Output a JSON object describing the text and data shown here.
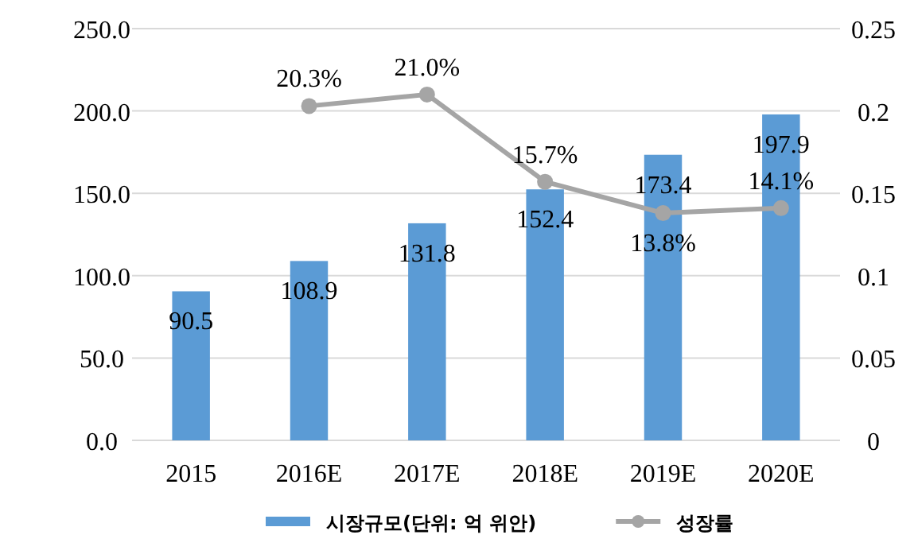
{
  "chart_data": {
    "type": "bar",
    "categories": [
      "2015",
      "2016E",
      "2017E",
      "2018E",
      "2019E",
      "2020E"
    ],
    "series": [
      {
        "name": "시장규모(단위: 억 위안)",
        "color": "#5b9bd5",
        "values": [
          90.5,
          108.9,
          131.8,
          152.4,
          173.4,
          197.9
        ]
      },
      {
        "name": "성장률",
        "type": "line",
        "axis": "y2",
        "color": "#a5a5a5",
        "values": [
          null,
          0.203,
          0.21,
          0.157,
          0.138,
          0.141
        ],
        "value_labels": [
          null,
          "20.3%",
          "21.0%",
          "15.7%",
          "13.8%",
          "14.1%"
        ]
      }
    ],
    "data_labels": true,
    "ylim": [
      0,
      250
    ],
    "yticks": [
      {
        "value": 0,
        "label": "0.0"
      },
      {
        "value": 50,
        "label": "50.0"
      },
      {
        "value": 100,
        "label": "100.0"
      },
      {
        "value": 150,
        "label": "150.0"
      },
      {
        "value": 200,
        "label": "200.0"
      },
      {
        "value": 250,
        "label": "250.0"
      }
    ],
    "y2lim": [
      0,
      0.25
    ],
    "y2ticks": [
      0,
      0.05,
      0.1,
      0.15,
      0.2,
      0.25
    ],
    "grid": "y",
    "legend": "bottom",
    "marker": "circle"
  }
}
